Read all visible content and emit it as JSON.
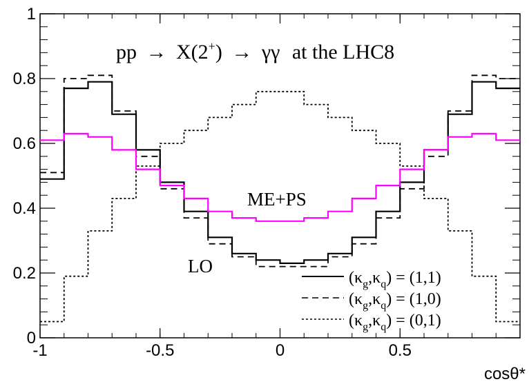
{
  "chart_data": {
    "type": "line",
    "title": "pp → X(2⁺) → γγ  at the LHC8",
    "xlabel": "cosθ*",
    "ylabel": "",
    "xlim": [
      -1,
      1
    ],
    "ylim": [
      0,
      1
    ],
    "grid": false,
    "legend_position": "bottom-right",
    "bin_edges": [
      -1.0,
      -0.9,
      -0.8,
      -0.7,
      -0.6,
      -0.5,
      -0.4,
      -0.3,
      -0.2,
      -0.1,
      0.0,
      0.1,
      0.2,
      0.3,
      0.4,
      0.5,
      0.6,
      0.7,
      0.8,
      0.9,
      1.0
    ],
    "x_ticks": [
      "-1",
      "-0.5",
      "0",
      "0.5"
    ],
    "y_ticks": [
      "0",
      "0.2",
      "0.4",
      "0.6",
      "0.8",
      "1"
    ],
    "series": [
      {
        "name": "(κg,κq) = (1,1)",
        "style": "solid",
        "color": "#000000",
        "values": [
          0.49,
          0.77,
          0.79,
          0.69,
          0.58,
          0.48,
          0.39,
          0.31,
          0.26,
          0.24,
          0.23,
          0.24,
          0.26,
          0.31,
          0.39,
          0.48,
          0.58,
          0.69,
          0.79,
          0.77,
          0.49
        ]
      },
      {
        "name": "(κg,κq) = (1,0)",
        "style": "dashed",
        "color": "#000000",
        "values": [
          0.51,
          0.8,
          0.81,
          0.7,
          0.56,
          0.46,
          0.37,
          0.29,
          0.25,
          0.22,
          0.22,
          0.22,
          0.25,
          0.29,
          0.37,
          0.46,
          0.56,
          0.7,
          0.81,
          0.8,
          0.51
        ]
      },
      {
        "name": "(κg,κq) = (0,1)",
        "style": "dotted",
        "color": "#000000",
        "values": [
          0.05,
          0.19,
          0.33,
          0.43,
          0.53,
          0.6,
          0.64,
          0.68,
          0.72,
          0.76,
          0.76,
          0.72,
          0.68,
          0.64,
          0.6,
          0.53,
          0.43,
          0.33,
          0.19,
          0.05,
          0.05
        ]
      },
      {
        "name": "",
        "style": "solid",
        "color": "#ff00ff",
        "values": [
          0.61,
          0.63,
          0.62,
          0.58,
          0.52,
          0.47,
          0.43,
          0.39,
          0.37,
          0.36,
          0.36,
          0.37,
          0.39,
          0.43,
          0.47,
          0.52,
          0.58,
          0.62,
          0.63,
          0.61,
          0.61
        ]
      }
    ],
    "annotations": [
      {
        "text": "ME+PS",
        "color": "#ff00ff"
      },
      {
        "text": "LO",
        "color": "#000000"
      }
    ]
  },
  "title_parts": {
    "prefix": "pp",
    "arrow1": "→",
    "particle": "X(2",
    "sup": "+",
    "particle_end": ")",
    "arrow2": "→",
    "final": "γγ",
    "suffix": "at the LHC8"
  },
  "legend": [
    {
      "pre": "(κ",
      "sub1": "g",
      "mid": ",κ",
      "sub2": "q",
      "post": ") = (1,1)"
    },
    {
      "pre": "(κ",
      "sub1": "g",
      "mid": ",κ",
      "sub2": "q",
      "post": ") = (1,0)"
    },
    {
      "pre": "(κ",
      "sub1": "g",
      "mid": ",κ",
      "sub2": "q",
      "post": ") = (0,1)"
    }
  ]
}
